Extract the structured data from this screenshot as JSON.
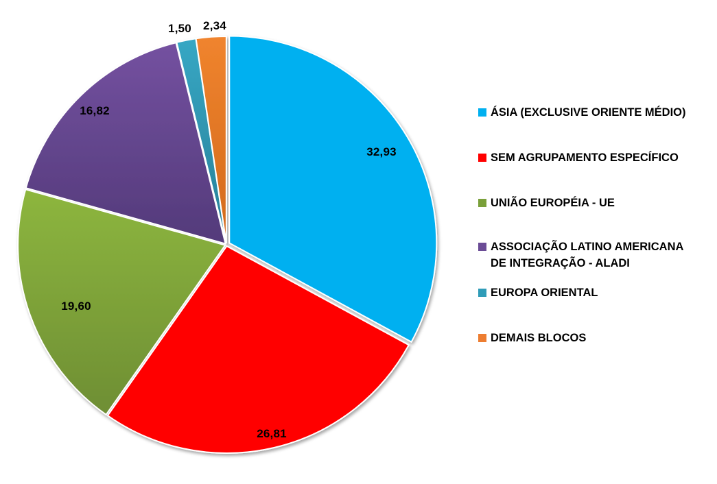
{
  "chart_data": {
    "type": "pie",
    "title": "",
    "legend_position": "right",
    "categories": [
      "ÁSIA (EXCLUSIVE ORIENTE MÉDIO)",
      "SEM AGRUPAMENTO ESPECÍFICO",
      "UNIÃO EUROPÉIA - UE",
      "ASSOCIAÇÃO LATINO AMERICANA DE INTEGRAÇÃO - ALADI",
      "EUROPA ORIENTAL",
      "DEMAIS BLOCOS"
    ],
    "values": [
      32.93,
      26.81,
      19.6,
      16.82,
      1.5,
      2.34
    ],
    "value_labels": [
      "32,93",
      "26,81",
      "19,60",
      "16,82",
      "1,50",
      "2,34"
    ],
    "colors": [
      "#00b0f0",
      "#ff0000",
      "#8aab3c",
      "#6b4c96",
      "#2f9cb8",
      "#ed7d31"
    ],
    "start_angle_deg": 0,
    "direction": "clockwise"
  },
  "legend": {
    "items": [
      {
        "label": "ÁSIA (EXCLUSIVE ORIENTE MÉDIO)",
        "color": "#00b0f0"
      },
      {
        "label": "SEM AGRUPAMENTO ESPECÍFICO",
        "color": "#ff0000"
      },
      {
        "label": "UNIÃO EUROPÉIA - UE",
        "color": "#7aa03a"
      },
      {
        "label": "ASSOCIAÇÃO LATINO AMERICANA\nDE INTEGRAÇÃO - ALADI",
        "color": "#6b4c96"
      },
      {
        "label": "EUROPA ORIENTAL",
        "color": "#2f9cb8"
      },
      {
        "label": "DEMAIS BLOCOS",
        "color": "#ed7d31"
      }
    ]
  },
  "labels": {
    "asia": "32,93",
    "sem_agrupamento": "26,81",
    "ue": "19,60",
    "aladi": "16,82",
    "europa_oriental": "1,50",
    "demais_blocos": "2,34"
  }
}
